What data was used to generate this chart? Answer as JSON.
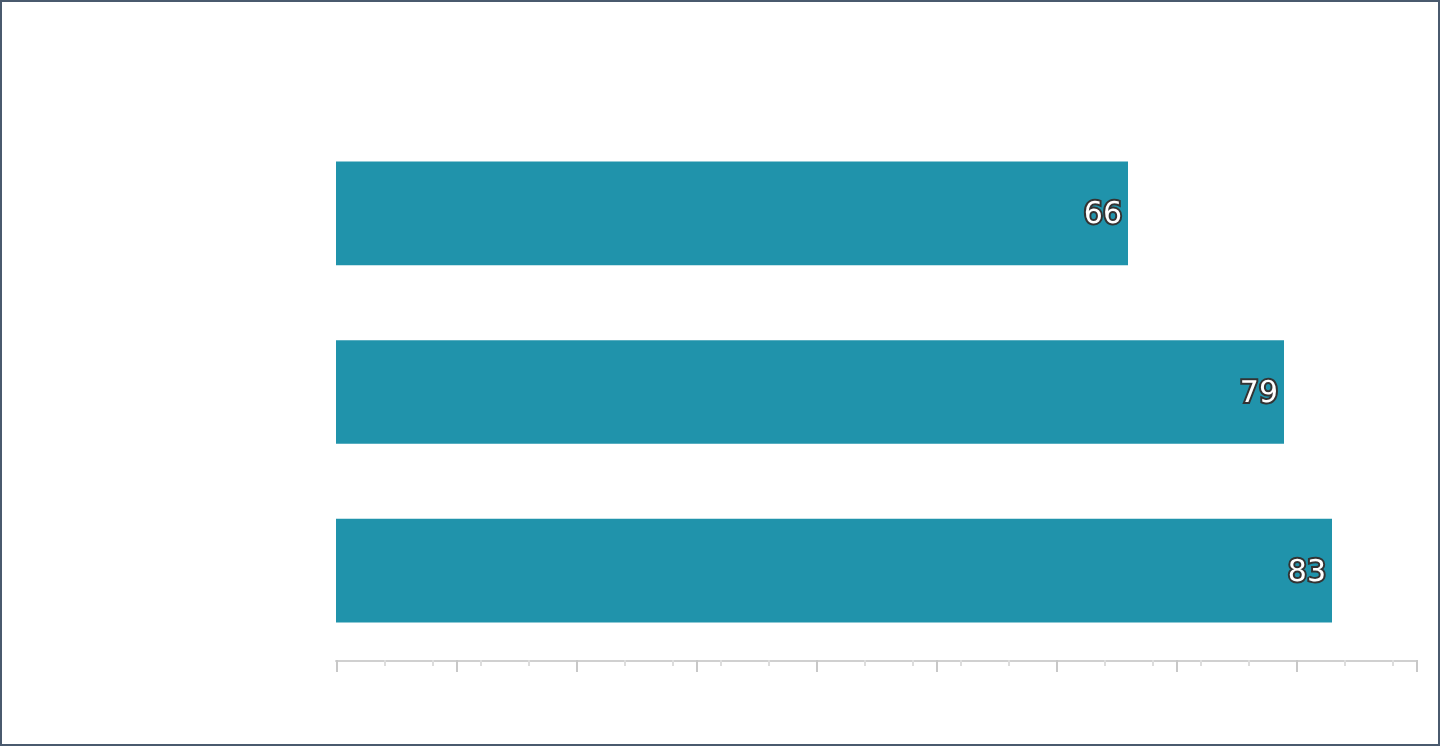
{
  "chart_data": {
    "type": "bar",
    "orientation": "horizontal",
    "categories": [
      null,
      null,
      null
    ],
    "values": [
      66,
      79,
      83
    ],
    "color": "#2093ab",
    "xlim": [
      0,
      90
    ],
    "xticks": [
      {
        "value": 0,
        "label": null
      },
      {
        "value": 10,
        "label": null
      },
      {
        "value": 20,
        "label": null
      },
      {
        "value": 30,
        "label": null
      },
      {
        "value": 40,
        "label": null
      },
      {
        "value": 50,
        "label": null
      },
      {
        "value": 60,
        "label": null
      },
      {
        "value": 70,
        "label": null
      },
      {
        "value": 80,
        "label": null
      },
      {
        "value": 90,
        "label": null
      }
    ],
    "data_labels": true,
    "grid": false
  }
}
